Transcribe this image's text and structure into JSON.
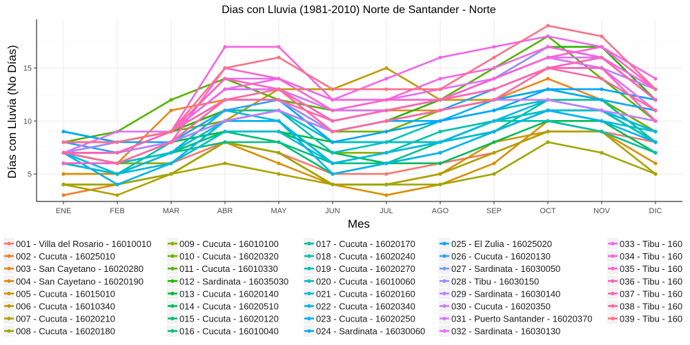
{
  "chart_data": {
    "type": "line",
    "title": "Dias con Lluvia (1981-2010)  Norte de Santander - Norte",
    "xlabel": "Mes",
    "ylabel": "Días con Lluvia (No Días)",
    "categories": [
      "ENE",
      "FEB",
      "MAR",
      "ABR",
      "MAY",
      "JUN",
      "JUL",
      "AGO",
      "SEP",
      "OCT",
      "NOV",
      "DIC"
    ],
    "ylim": [
      2.4,
      19.6
    ],
    "yticks": [
      5,
      10,
      15
    ],
    "grid": true,
    "legend_position": "bottom",
    "series": [
      {
        "name": "001 - Villa del Rosario - 16010010",
        "color": "#F8766D",
        "values": [
          5,
          5,
          6,
          8,
          7,
          5,
          5,
          6,
          7,
          9,
          9,
          8
        ]
      },
      {
        "name": "002 - Cucuta - 16025010",
        "color": "#F07D2A",
        "values": [
          3,
          4,
          5,
          8,
          7,
          4,
          4,
          5,
          7,
          9,
          9,
          7
        ]
      },
      {
        "name": "003 - San Cayetano - 16020280",
        "color": "#E7861B",
        "values": [
          7,
          6,
          11,
          12,
          12,
          11,
          11,
          11,
          12,
          14,
          12,
          11
        ]
      },
      {
        "name": "004 - San Cayetano - 16020190",
        "color": "#DB8E00",
        "values": [
          5,
          5,
          7,
          8,
          6,
          4,
          3,
          4,
          6,
          10,
          9,
          6
        ]
      },
      {
        "name": "005 - Cucuta - 16015010",
        "color": "#CF9400",
        "values": [
          4,
          4,
          5,
          8,
          7,
          4,
          4,
          5,
          8,
          9,
          9,
          7
        ]
      },
      {
        "name": "006 - Cucuta - 16010340",
        "color": "#BF9B00",
        "values": [
          6,
          5,
          7,
          10,
          13,
          13,
          15,
          12,
          12,
          13,
          12,
          9
        ]
      },
      {
        "name": "007 - Cucuta - 16020210",
        "color": "#AEA200",
        "values": [
          4,
          3,
          5,
          6,
          5,
          4,
          4,
          5,
          7,
          9,
          9,
          5
        ]
      },
      {
        "name": "008 - Cucuta - 16020180",
        "color": "#9DA700",
        "values": [
          4,
          4,
          5,
          8,
          7,
          4,
          4,
          4,
          5,
          8,
          7,
          5
        ]
      },
      {
        "name": "009 - Cucuta - 16010100",
        "color": "#89AC00",
        "values": [
          6,
          6,
          6,
          9,
          9,
          7,
          7,
          8,
          9,
          11,
          11,
          8
        ]
      },
      {
        "name": "010 - Cucuta - 16020320",
        "color": "#72B000",
        "values": [
          7,
          8,
          9,
          10,
          11,
          9,
          9,
          11,
          12,
          13,
          12,
          9
        ]
      },
      {
        "name": "011 - Cucuta - 16010330",
        "color": "#55B400",
        "values": [
          8,
          9,
          12,
          14,
          12,
          11,
          11,
          12,
          15,
          18,
          14,
          10
        ]
      },
      {
        "name": "012 - Sardinata - 16035030",
        "color": "#22B700",
        "values": [
          8,
          8,
          9,
          11,
          11,
          9,
          10,
          12,
          14,
          17,
          17,
          12
        ]
      },
      {
        "name": "013 - Cucuta - 16020140",
        "color": "#00BA38",
        "values": [
          7,
          7,
          8,
          9,
          9,
          8,
          8,
          8,
          10,
          11,
          11,
          8
        ]
      },
      {
        "name": "014 - Cucuta - 16020510",
        "color": "#00BC59",
        "values": [
          7,
          6,
          7,
          9,
          9,
          7,
          6,
          6,
          8,
          10,
          10,
          7
        ]
      },
      {
        "name": "015 - Cucuta - 16020120",
        "color": "#00BE70",
        "values": [
          6,
          6,
          7,
          9,
          8,
          5,
          6,
          7,
          9,
          11,
          11,
          8
        ]
      },
      {
        "name": "016 - Cucuta - 16010040",
        "color": "#00C085",
        "values": [
          6,
          5,
          7,
          8,
          8,
          6,
          6,
          8,
          10,
          11,
          11,
          8
        ]
      },
      {
        "name": "017 - Cucuta - 16020170",
        "color": "#00C097",
        "values": [
          7,
          6,
          8,
          11,
          11,
          8,
          8,
          8,
          9,
          12,
          12,
          8
        ]
      },
      {
        "name": "018 - Cucuta - 16020240",
        "color": "#00C1A9",
        "values": [
          6,
          5,
          8,
          10,
          10,
          6,
          7,
          9,
          10,
          10,
          9,
          7
        ]
      },
      {
        "name": "019 - Cucuta - 16020270",
        "color": "#00C0B9",
        "values": [
          7,
          6,
          8,
          10,
          11,
          7,
          8,
          10,
          11,
          12,
          11,
          8
        ]
      },
      {
        "name": "020 - Cucuta - 16010060",
        "color": "#00BFC8",
        "values": [
          7,
          6,
          7,
          10,
          11,
          8,
          8,
          8,
          10,
          11,
          10,
          9
        ]
      },
      {
        "name": "021 - Cucuta - 16020160",
        "color": "#00BCD6",
        "values": [
          6,
          5,
          6,
          9,
          9,
          6,
          7,
          8,
          9,
          11,
          11,
          9
        ]
      },
      {
        "name": "022 - Cucuta - 16020340",
        "color": "#00B8E3",
        "values": [
          7,
          5,
          7,
          11,
          10,
          6,
          7,
          8,
          10,
          12,
          11,
          9
        ]
      },
      {
        "name": "023 - Cucuta - 16020250",
        "color": "#00B3EE",
        "values": [
          7,
          4,
          6,
          10,
          10,
          5,
          6,
          7,
          9,
          11,
          10,
          8
        ]
      },
      {
        "name": "024 - Sardinata - 16030060",
        "color": "#00ADF8",
        "values": [
          9,
          8,
          9,
          12,
          12,
          9,
          10,
          10,
          12,
          13,
          12,
          11
        ]
      },
      {
        "name": "025 - El Zulia - 16025020",
        "color": "#00A6FF",
        "values": [
          9,
          8,
          8,
          12,
          12,
          8,
          9,
          10,
          11,
          13,
          13,
          12
        ]
      },
      {
        "name": "026 - Cucuta - 16020130",
        "color": "#309EFF",
        "values": [
          8,
          7,
          8,
          11,
          12,
          9,
          10,
          11,
          13,
          15,
          16,
          12
        ]
      },
      {
        "name": "027 - Sardinata - 16030050",
        "color": "#7997FF",
        "values": [
          7,
          7,
          9,
          13,
          13,
          11,
          12,
          12,
          14,
          16,
          15,
          11
        ]
      },
      {
        "name": "028 - Tibu - 16030150",
        "color": "#9A8EFF",
        "values": [
          7,
          8,
          9,
          13,
          13,
          10,
          11,
          12,
          14,
          17,
          16,
          12
        ]
      },
      {
        "name": "029 - Sardinata - 16030140",
        "color": "#B385FF",
        "values": [
          7,
          7,
          9,
          12,
          12,
          9,
          10,
          11,
          12,
          15,
          15,
          13
        ]
      },
      {
        "name": "030 - Cucuta - 16020350",
        "color": "#C77CFF",
        "values": [
          7,
          7,
          8,
          10,
          11,
          9,
          10,
          11,
          12,
          12,
          11,
          10
        ]
      },
      {
        "name": "031 - Puerto Santander - 16020370",
        "color": "#D874FD",
        "values": [
          7,
          9,
          9,
          13,
          13,
          11,
          11,
          12,
          14,
          16,
          16,
          12
        ]
      },
      {
        "name": "032 - Sardinata - 16030130",
        "color": "#E56DF6",
        "values": [
          8,
          8,
          9,
          14,
          14,
          12,
          12,
          13,
          14,
          16,
          15,
          11
        ]
      },
      {
        "name": "033 - Tibu - 160",
        "color": "#F066EA",
        "values": [
          7,
          7,
          9,
          13,
          14,
          12,
          14,
          16,
          17,
          18,
          17,
          14
        ]
      },
      {
        "name": "034 - Tibu - 160",
        "color": "#F863DE",
        "values": [
          8,
          8,
          9,
          17,
          17,
          12,
          12,
          14,
          15,
          17,
          16,
          13
        ]
      },
      {
        "name": "035 - Tibu - 160",
        "color": "#FD61D1",
        "values": [
          6,
          6,
          8,
          15,
          14,
          11,
          12,
          12,
          14,
          16,
          17,
          13
        ]
      },
      {
        "name": "036 - Tibu - 160",
        "color": "#FF62BF",
        "values": [
          8,
          8,
          9,
          14,
          13,
          10,
          11,
          12,
          13,
          15,
          15,
          10
        ]
      },
      {
        "name": "037 - Tibu - 160",
        "color": "#FF65AE",
        "values": [
          7,
          7,
          9,
          12,
          12,
          10,
          11,
          12,
          13,
          15,
          16,
          12
        ]
      },
      {
        "name": "038 - Tibu - 160",
        "color": "#FF699C",
        "values": [
          7,
          6,
          8,
          12,
          13,
          9,
          10,
          11,
          12,
          15,
          14,
          11
        ]
      },
      {
        "name": "039 - Tibu - 160",
        "color": "#FC7189",
        "values": [
          8,
          8,
          9,
          15,
          16,
          13,
          13,
          13,
          16,
          19,
          18,
          13
        ]
      }
    ]
  }
}
